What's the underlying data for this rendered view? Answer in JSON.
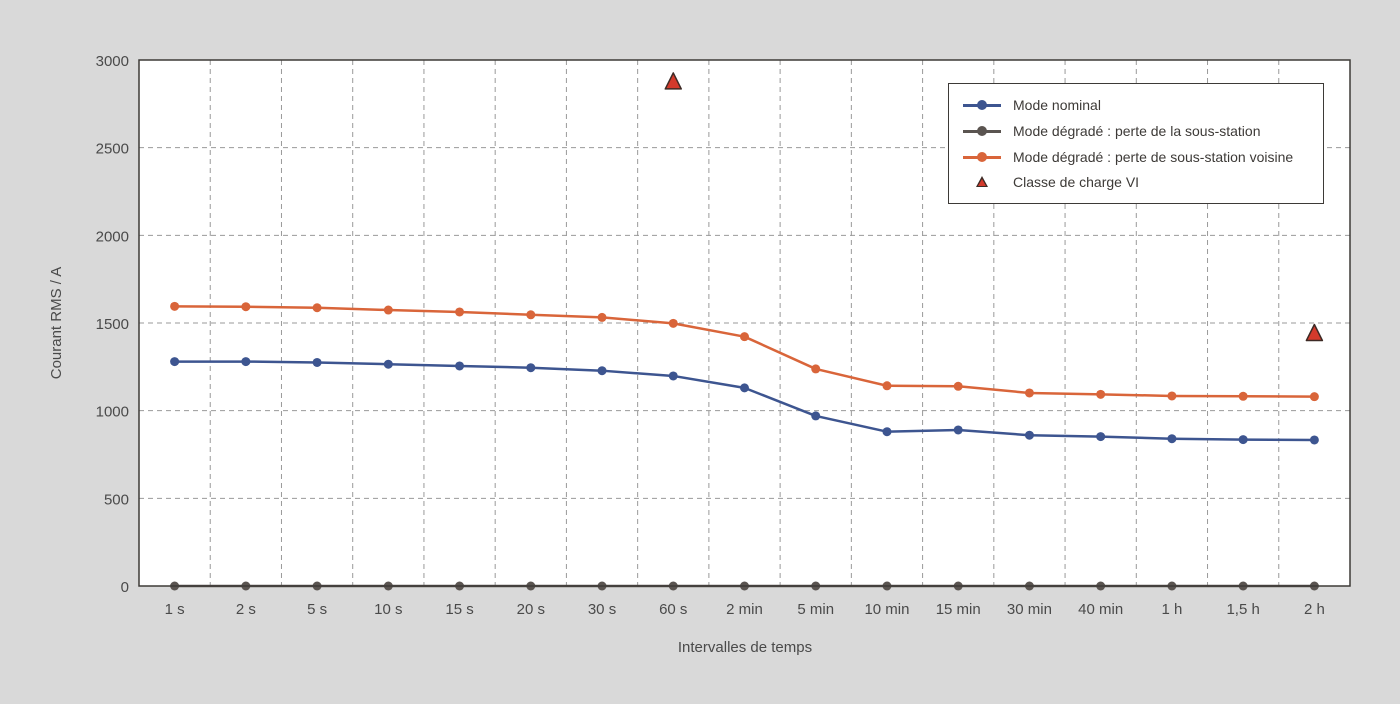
{
  "chart_data": {
    "type": "line",
    "title": "",
    "xlabel": "Intervalles de temps",
    "ylabel": "Courant RMS / A",
    "ylim": [
      0,
      3000
    ],
    "yticks": [
      0,
      500,
      1000,
      1500,
      2000,
      2500,
      3000
    ],
    "grid": true,
    "legend_position": "upper right",
    "categories": [
      "1 s",
      "2 s",
      "5 s",
      "10 s",
      "15 s",
      "20 s",
      "30 s",
      "60 s",
      "2 min",
      "5 min",
      "10 min",
      "15 min",
      "30 min",
      "40 min",
      "1 h",
      "1,5 h",
      "2 h"
    ],
    "series": [
      {
        "name": "Mode nominal",
        "color": "#3d5590",
        "marker": "circle",
        "values": [
          1280,
          1280,
          1275,
          1265,
          1255,
          1245,
          1228,
          1198,
          1130,
          970,
          880,
          890,
          860,
          852,
          840,
          835,
          833
        ]
      },
      {
        "name": "Mode dégradé : perte de la sous-station",
        "color": "#5a5450",
        "marker": "circle",
        "values": [
          0,
          0,
          0,
          0,
          0,
          0,
          0,
          0,
          0,
          0,
          0,
          0,
          0,
          0,
          0,
          0,
          0
        ]
      },
      {
        "name": "Mode dégradé : perte de sous-station voisine",
        "color": "#d9653a",
        "marker": "circle",
        "values": [
          1595,
          1593,
          1587,
          1574,
          1563,
          1547,
          1532,
          1498,
          1422,
          1238,
          1142,
          1139,
          1101,
          1093,
          1084,
          1082,
          1080
        ]
      },
      {
        "name": "Classe de charge VI",
        "color": "#d33a2c",
        "marker": "triangle",
        "type": "scatter",
        "points": [
          {
            "x": "60 s",
            "y": 2875
          },
          {
            "x": "2 h",
            "y": 1440
          }
        ]
      }
    ]
  },
  "legend": {
    "items": [
      {
        "label": "Mode nominal"
      },
      {
        "label": "Mode dégradé : perte de la sous-station"
      },
      {
        "label": "Mode dégradé : perte de sous-station voisine"
      },
      {
        "label": "Classe de charge VI"
      }
    ]
  }
}
